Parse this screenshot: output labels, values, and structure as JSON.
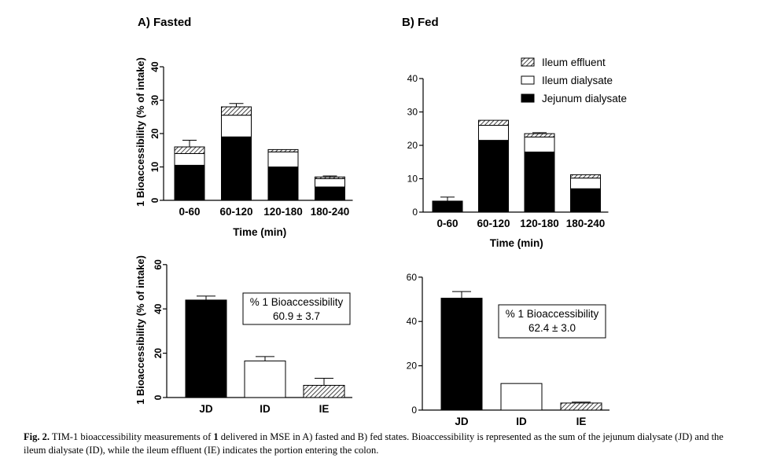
{
  "caption": {
    "label": "Fig. 2.",
    "text_before": "TIM-1 bioaccessibility measurements of ",
    "compound": "1",
    "text_after": " delivered in MSE in A) fasted and B) fed states. Bioaccessibility is represented as the sum of the jejunum dialysate (JD) and the ileum dialysate (ID), while the ileum effluent (IE) indicates the portion entering the colon."
  },
  "colors": {
    "jejunum_dialysate": "#000000",
    "ileum_dialysate": "#ffffff",
    "ileum_effluent": "hatched-gray"
  },
  "chart_data": [
    {
      "type": "bar",
      "stacked": true,
      "panel_title": "A) Fasted",
      "xlabel": "Time (min)",
      "ylabel": "1 Bioaccessibility (% of intake)",
      "ylim": [
        0,
        40
      ],
      "yticks": [
        0,
        10,
        20,
        30,
        40
      ],
      "categories": [
        "0-60",
        "60-120",
        "120-180",
        "180-240"
      ],
      "series": [
        {
          "name": "Jejunum dialysate",
          "values": [
            10.5,
            19,
            10,
            4
          ],
          "errors": [
            1.7,
            2.3,
            1.9,
            0.3
          ]
        },
        {
          "name": "Ileum dialysate",
          "values": [
            3.5,
            6.5,
            4.5,
            2.5
          ],
          "errors": [
            null,
            null,
            null,
            null
          ]
        },
        {
          "name": "Ileum effluent",
          "values": [
            2.0,
            2.5,
            0.7,
            0.5
          ],
          "errors": [
            2.0,
            1.0,
            0,
            0.3
          ]
        }
      ]
    },
    {
      "type": "bar",
      "stacked": true,
      "panel_title": "B) Fed",
      "xlabel": "Time (min)",
      "ylabel": "",
      "ylim": [
        0,
        40
      ],
      "yticks": [
        0,
        10,
        20,
        30,
        40
      ],
      "categories": [
        "0-60",
        "60-120",
        "120-180",
        "180-240"
      ],
      "legend": [
        "Ileum effluent",
        "Ileum dialysate",
        "Jejunum dialysate"
      ],
      "legend_position": "top-right",
      "series": [
        {
          "name": "Jejunum dialysate",
          "values": [
            3.3,
            21.5,
            18,
            7
          ],
          "errors": [
            1.2,
            1.5,
            1.0,
            0.8
          ]
        },
        {
          "name": "Ileum dialysate",
          "values": [
            0,
            4.5,
            4.5,
            3.2
          ],
          "errors": [
            null,
            null,
            null,
            null
          ]
        },
        {
          "name": "Ileum effluent",
          "values": [
            0,
            1.5,
            1.0,
            1.0
          ],
          "errors": [
            0,
            0,
            0.3,
            0
          ]
        }
      ]
    },
    {
      "type": "bar",
      "stacked": false,
      "panel_title": "",
      "xlabel": "",
      "ylabel": "1 Bioaccessibility (% of intake)",
      "ylim": [
        0,
        60
      ],
      "yticks": [
        0,
        20,
        40,
        60
      ],
      "categories": [
        "JD",
        "ID",
        "IE"
      ],
      "values": [
        44,
        16.5,
        5.5
      ],
      "errors": [
        1.8,
        2.0,
        3.2
      ],
      "annotation_lines": [
        "% 1 Bioaccessibility",
        "60.9 ± 3.7"
      ]
    },
    {
      "type": "bar",
      "stacked": false,
      "panel_title": "",
      "xlabel": "",
      "ylabel": "",
      "ylim": [
        0,
        60
      ],
      "yticks": [
        0,
        20,
        40,
        60
      ],
      "categories": [
        "JD",
        "ID",
        "IE"
      ],
      "values": [
        50.5,
        12,
        3.2
      ],
      "errors": [
        3.0,
        0,
        0.4
      ],
      "annotation_lines": [
        "% 1 Bioaccessibility",
        "62.4 ± 3.0"
      ]
    }
  ]
}
